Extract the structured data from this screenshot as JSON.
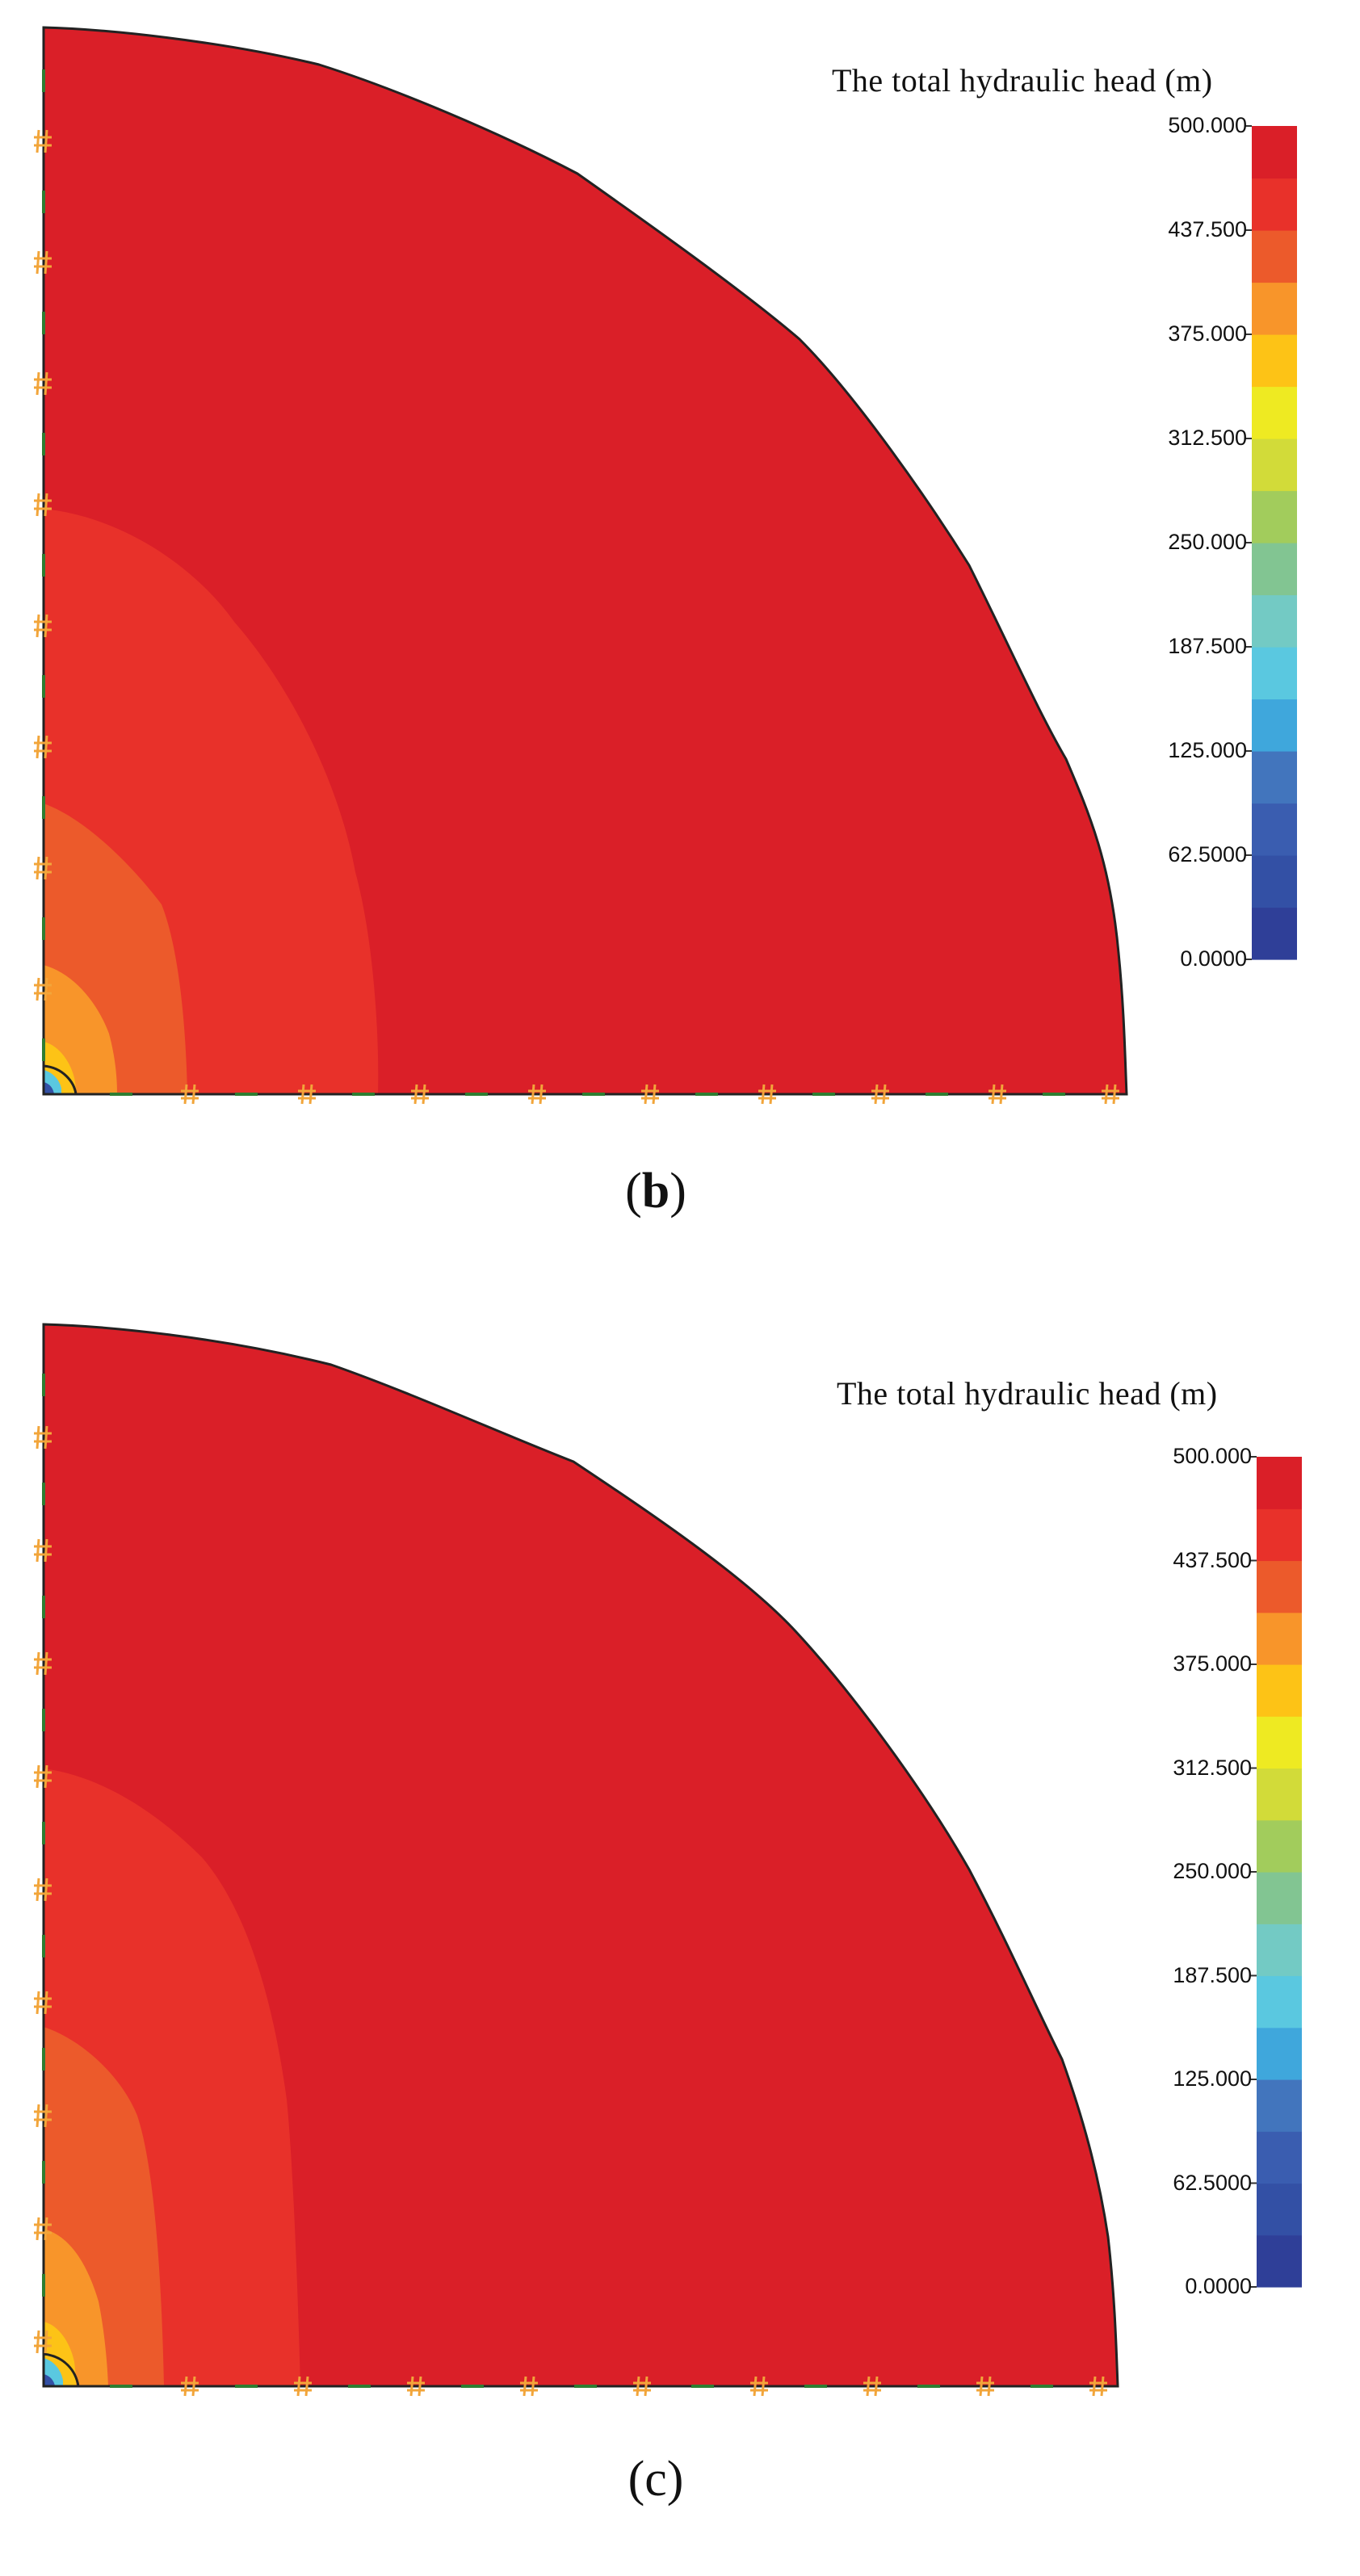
{
  "legend_title": "The total hydraulic head (m)",
  "legend_ticks": [
    "500.000",
    "437.500",
    "375.000",
    "312.500",
    "250.000",
    "187.500",
    "125.000",
    "62.5000",
    "0.0000"
  ],
  "legend_colors": [
    "#2f3f98",
    "#3350a5",
    "#3a5db0",
    "#4275bd",
    "#3fa7dc",
    "#5ac8e0",
    "#73cac4",
    "#82c592",
    "#a2cc5c",
    "#d2db39",
    "#eeea22",
    "#fdc316",
    "#f8952a",
    "#ec5a2b",
    "#e8312a",
    "#da1f28"
  ],
  "zone_colors": {
    "outer": "#da1f28",
    "band_437": "#e8312a",
    "band_425": "#ec5a2b",
    "band_400": "#f8952a",
    "band_375": "#fdc316",
    "band_low": "#5ac8e0",
    "band_min": "#3350a5"
  },
  "boundary_colors": {
    "fixed_head_marker": "#f2a53a",
    "no_flow_marker": "#2e7d32",
    "outline": "#222222"
  },
  "panels": [
    {
      "label": "b"
    },
    {
      "label": "c"
    }
  ]
}
